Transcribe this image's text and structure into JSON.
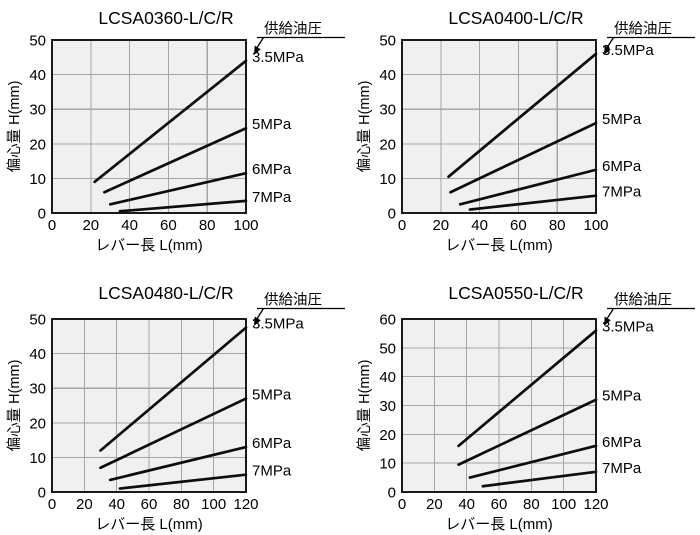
{
  "page": {
    "background": "#ffffff"
  },
  "colors": {
    "plot_bg": "#f0f0f0",
    "grid": "#a6a6a6",
    "border": "#1a1a1a",
    "line": "#0d0d0d",
    "text": "#000000"
  },
  "chart_data": [
    {
      "type": "line",
      "title": "LCSA0360-L/C/R",
      "annotation": "供給油圧",
      "xlabel": "レバー長 L(mm)",
      "ylabel": "偏心量 H(mm)",
      "xlim": [
        0,
        100
      ],
      "ylim": [
        0,
        50
      ],
      "xticks": [
        0,
        20,
        40,
        60,
        80,
        100
      ],
      "yticks": [
        0,
        10,
        20,
        30,
        40,
        50
      ],
      "grid": true,
      "legend_position": "right-of-line",
      "series": [
        {
          "name": "3.5MPa",
          "points": [
            [
              22,
              9
            ],
            [
              100,
              44
            ]
          ]
        },
        {
          "name": "5MPa",
          "points": [
            [
              27,
              6
            ],
            [
              100,
              24.5
            ]
          ]
        },
        {
          "name": "6MPa",
          "points": [
            [
              30,
              2.5
            ],
            [
              100,
              11.5
            ]
          ]
        },
        {
          "name": "7MPa",
          "points": [
            [
              35,
              0.5
            ],
            [
              100,
              3.5
            ]
          ]
        }
      ]
    },
    {
      "type": "line",
      "title": "LCSA0400-L/C/R",
      "annotation": "供給油圧",
      "xlabel": "レバー長 L(mm)",
      "ylabel": "偏心量 H(mm)",
      "xlim": [
        0,
        100
      ],
      "ylim": [
        0,
        50
      ],
      "xticks": [
        0,
        20,
        40,
        60,
        80,
        100
      ],
      "yticks": [
        0,
        10,
        20,
        30,
        40,
        50
      ],
      "grid": true,
      "legend_position": "right-of-line",
      "series": [
        {
          "name": "3.5MPa",
          "points": [
            [
              24,
              10.5
            ],
            [
              100,
              46
            ]
          ]
        },
        {
          "name": "5MPa",
          "points": [
            [
              25,
              6
            ],
            [
              100,
              26
            ]
          ]
        },
        {
          "name": "6MPa",
          "points": [
            [
              30,
              2.5
            ],
            [
              100,
              12.5
            ]
          ]
        },
        {
          "name": "7MPa",
          "points": [
            [
              35,
              1
            ],
            [
              100,
              5
            ]
          ]
        }
      ]
    },
    {
      "type": "line",
      "title": "LCSA0480-L/C/R",
      "annotation": "供給油圧",
      "xlabel": "レバー長 L(mm)",
      "ylabel": "偏心量 H(mm)",
      "xlim": [
        0,
        120
      ],
      "ylim": [
        0,
        50
      ],
      "xticks": [
        0,
        20,
        40,
        60,
        80,
        100,
        120
      ],
      "yticks": [
        0,
        10,
        20,
        30,
        40,
        50
      ],
      "grid": true,
      "legend_position": "right-of-line",
      "series": [
        {
          "name": "3.5MPa",
          "points": [
            [
              30,
              12
            ],
            [
              120,
              47.5
            ]
          ]
        },
        {
          "name": "5MPa",
          "points": [
            [
              30,
              7
            ],
            [
              120,
              27
            ]
          ]
        },
        {
          "name": "6MPa",
          "points": [
            [
              36,
              3.5
            ],
            [
              120,
              13
            ]
          ]
        },
        {
          "name": "7MPa",
          "points": [
            [
              42,
              1
            ],
            [
              120,
              5
            ]
          ]
        }
      ]
    },
    {
      "type": "line",
      "title": "LCSA0550-L/C/R",
      "annotation": "供給油圧",
      "xlabel": "レバー長 L(mm)",
      "ylabel": "偏心量 H(mm)",
      "xlim": [
        0,
        120
      ],
      "ylim": [
        0,
        60
      ],
      "xticks": [
        0,
        20,
        40,
        60,
        80,
        100,
        120
      ],
      "yticks": [
        0,
        10,
        20,
        30,
        40,
        50,
        60
      ],
      "grid": true,
      "legend_position": "right-of-line",
      "series": [
        {
          "name": "3.5MPa",
          "points": [
            [
              35,
              16
            ],
            [
              120,
              56
            ]
          ]
        },
        {
          "name": "5MPa",
          "points": [
            [
              35,
              9.5
            ],
            [
              120,
              32
            ]
          ]
        },
        {
          "name": "6MPa",
          "points": [
            [
              42,
              5
            ],
            [
              120,
              16
            ]
          ]
        },
        {
          "name": "7MPa",
          "points": [
            [
              50,
              2
            ],
            [
              120,
              7
            ]
          ]
        }
      ]
    }
  ]
}
